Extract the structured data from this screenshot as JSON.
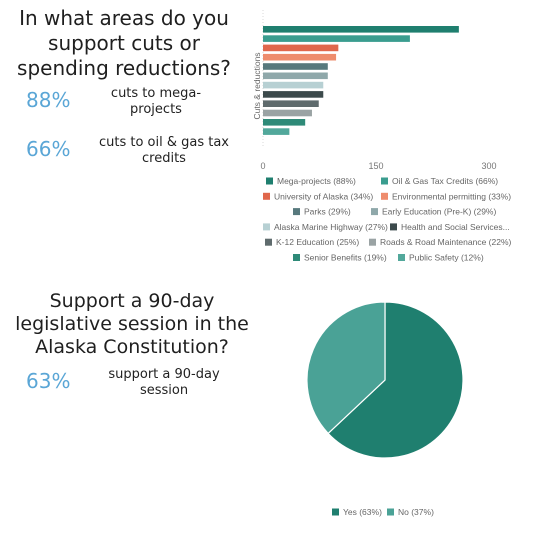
{
  "survey": {
    "q1": {
      "title": "In what areas do you support cuts or spending reductions?",
      "stats": [
        {
          "pct": "88%",
          "desc": "cuts to mega-projects"
        },
        {
          "pct": "66%",
          "desc": "cuts to oil & gas tax credits"
        }
      ]
    },
    "q2": {
      "title": "Support a 90-day legislative session in the Alaska Constitution?",
      "stats": [
        {
          "pct": "63%",
          "desc": "support a 90-day session"
        }
      ]
    }
  },
  "chart_data": [
    {
      "type": "bar",
      "orientation": "horizontal",
      "ylabel": "Cuts & reductions",
      "xlim": [
        0,
        300
      ],
      "xticks": [
        0,
        150,
        300
      ],
      "grid": false,
      "legend_position": "bottom",
      "series": [
        {
          "name": "Mega-projects (88%)",
          "value": 260,
          "color": "#1f7f6f"
        },
        {
          "name": "Oil & Gas Tax Credits (66%)",
          "value": 195,
          "color": "#3a9d8f"
        },
        {
          "name": "University of Alaska (34%)",
          "value": 100,
          "color": "#e0674c"
        },
        {
          "name": "Environmental permitting (33%)",
          "value": 97,
          "color": "#ee8c6d"
        },
        {
          "name": "Parks (29%)",
          "value": 86,
          "color": "#57797d"
        },
        {
          "name": "Early Education (Pre-K) (29%)",
          "value": 86,
          "color": "#8fa8aa"
        },
        {
          "name": "Alaska Marine Highway (27%)",
          "value": 80,
          "color": "#b7d0d3"
        },
        {
          "name": "Health and Social Services...",
          "value": 80,
          "color": "#3c4a4c"
        },
        {
          "name": "K-12 Education (25%)",
          "value": 74,
          "color": "#5f6b6d"
        },
        {
          "name": "Roads & Road Maintenance (22%)",
          "value": 65,
          "color": "#9aa3a4"
        },
        {
          "name": "Senior Benefits (19%)",
          "value": 56,
          "color": "#2e8a78"
        },
        {
          "name": "Public Safety (12%)",
          "value": 35,
          "color": "#52a89b"
        }
      ]
    },
    {
      "type": "pie",
      "legend_position": "bottom",
      "slices": [
        {
          "name": "Yes (63%)",
          "value": 63,
          "color": "#1f7f6f"
        },
        {
          "name": "No (37%)",
          "value": 37,
          "color": "#4aa296"
        }
      ]
    }
  ]
}
